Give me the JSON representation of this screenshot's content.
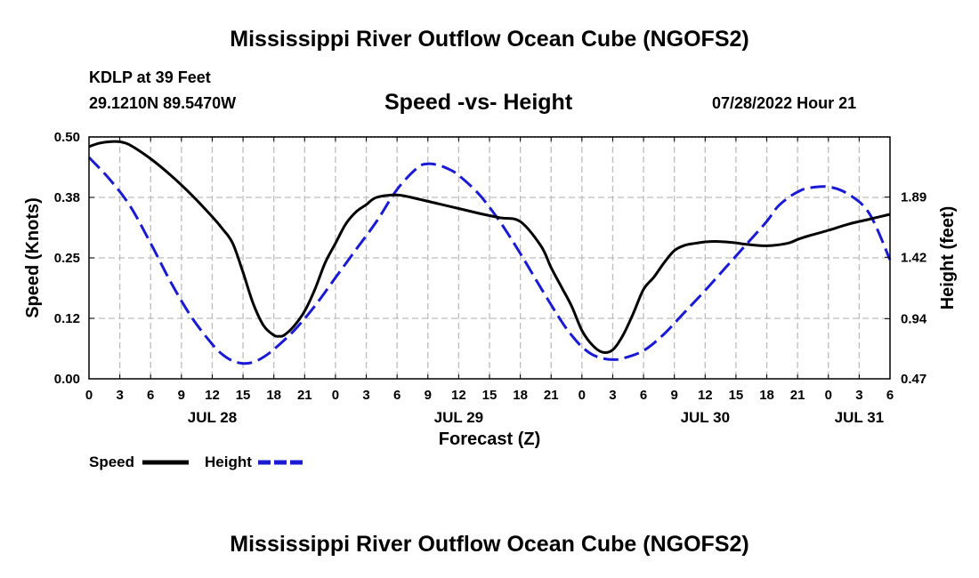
{
  "header": {
    "title": "Mississippi River Outflow Ocean Cube (NGOFS2)",
    "station": "KDLP at 39 Feet",
    "coords": "29.1210N  89.5470W",
    "subtitle": "Speed -vs- Height",
    "timestamp": "07/28/2022 Hour 21"
  },
  "footer": {
    "title": "Mississippi River Outflow Ocean Cube (NGOFS2)"
  },
  "chart_data": {
    "type": "line",
    "title": "Speed -vs- Height",
    "xlabel": "Forecast (Z)",
    "ylabel": "Speed (Knots)",
    "y2label": "Height (feet)",
    "x_start": "07/28/2022 00Z",
    "xlim": [
      0,
      78
    ],
    "ylim": [
      0,
      0.5
    ],
    "y2lim": [
      0.47,
      2.36
    ],
    "x_ticks": [
      0,
      3,
      6,
      9,
      12,
      15,
      18,
      21,
      24,
      27,
      30,
      33,
      36,
      39,
      42,
      45,
      48,
      51,
      54,
      57,
      60,
      63,
      66,
      69,
      72,
      75,
      78
    ],
    "x_tick_labels": [
      "0",
      "3",
      "6",
      "9",
      "12",
      "15",
      "18",
      "21",
      "0",
      "3",
      "6",
      "9",
      "12",
      "15",
      "18",
      "21",
      "0",
      "3",
      "6",
      "9",
      "12",
      "15",
      "18",
      "21",
      "0",
      "3",
      "6"
    ],
    "date_labels": [
      {
        "x": 12,
        "text": "JUL 28"
      },
      {
        "x": 36,
        "text": "JUL 29"
      },
      {
        "x": 60,
        "text": "JUL 30"
      },
      {
        "x": 75,
        "text": "JUL 31"
      }
    ],
    "y_ticks": [
      0.0,
      0.125,
      0.25,
      0.375,
      0.5
    ],
    "y_tick_labels": [
      "0.00",
      "0.12",
      "0.25",
      "0.38",
      "0.50"
    ],
    "y2_ticks": [
      0.94,
      1.42,
      1.89
    ],
    "y2_tick_labels": [
      "0.94",
      "1.42",
      "1.89"
    ],
    "y2_bottom_label": "0.47",
    "grid": true,
    "legend_position": "bottom-left",
    "series": [
      {
        "name": "Speed",
        "axis": "left",
        "color": "#000000",
        "dash": "solid",
        "x": [
          0,
          1,
          2,
          3,
          4,
          6,
          8,
          10,
          12,
          13,
          14,
          15,
          16,
          17,
          18,
          18.5,
          19,
          20,
          21,
          22,
          23,
          24,
          25,
          26,
          27,
          28,
          30,
          32,
          34,
          36,
          38,
          40,
          42,
          44,
          45,
          46,
          47,
          48,
          49,
          50,
          51,
          52,
          53,
          54,
          55,
          56,
          57,
          58,
          59,
          60,
          61,
          62,
          63,
          64,
          66,
          68,
          69,
          70,
          72,
          74,
          76,
          78
        ],
        "y": [
          0.48,
          0.487,
          0.49,
          0.49,
          0.483,
          0.455,
          0.42,
          0.38,
          0.335,
          0.31,
          0.28,
          0.22,
          0.155,
          0.11,
          0.09,
          0.088,
          0.09,
          0.11,
          0.14,
          0.185,
          0.24,
          0.28,
          0.32,
          0.345,
          0.36,
          0.375,
          0.38,
          0.372,
          0.362,
          0.352,
          0.342,
          0.333,
          0.325,
          0.275,
          0.23,
          0.19,
          0.15,
          0.1,
          0.07,
          0.055,
          0.06,
          0.09,
          0.135,
          0.185,
          0.21,
          0.24,
          0.265,
          0.276,
          0.28,
          0.283,
          0.284,
          0.283,
          0.281,
          0.278,
          0.275,
          0.28,
          0.288,
          0.295,
          0.307,
          0.32,
          0.33,
          0.34
        ]
      },
      {
        "name": "Height",
        "axis": "right",
        "color": "#1a1ad4",
        "dash": "dashed",
        "x": [
          0,
          2,
          4,
          6,
          8,
          10,
          12,
          13,
          14,
          15,
          16,
          17,
          18,
          20,
          22,
          24,
          26,
          28,
          30,
          32,
          33,
          34,
          35,
          36,
          38,
          40,
          42,
          44,
          46,
          47,
          48,
          49,
          50,
          51,
          52,
          54,
          56,
          58,
          60,
          62,
          64,
          66,
          67,
          68,
          69,
          70,
          72,
          74,
          76,
          78
        ],
        "y": [
          2.2,
          2.03,
          1.82,
          1.53,
          1.22,
          0.95,
          0.74,
          0.66,
          0.61,
          0.59,
          0.6,
          0.64,
          0.7,
          0.85,
          1.04,
          1.26,
          1.48,
          1.7,
          1.95,
          2.12,
          2.15,
          2.14,
          2.11,
          2.06,
          1.91,
          1.7,
          1.45,
          1.18,
          0.92,
          0.81,
          0.72,
          0.66,
          0.63,
          0.62,
          0.63,
          0.69,
          0.82,
          0.99,
          1.16,
          1.34,
          1.52,
          1.7,
          1.81,
          1.88,
          1.93,
          1.96,
          1.97,
          1.91,
          1.76,
          1.4
        ]
      }
    ]
  },
  "legend": {
    "speed_label": "Speed",
    "height_label": "Height"
  }
}
